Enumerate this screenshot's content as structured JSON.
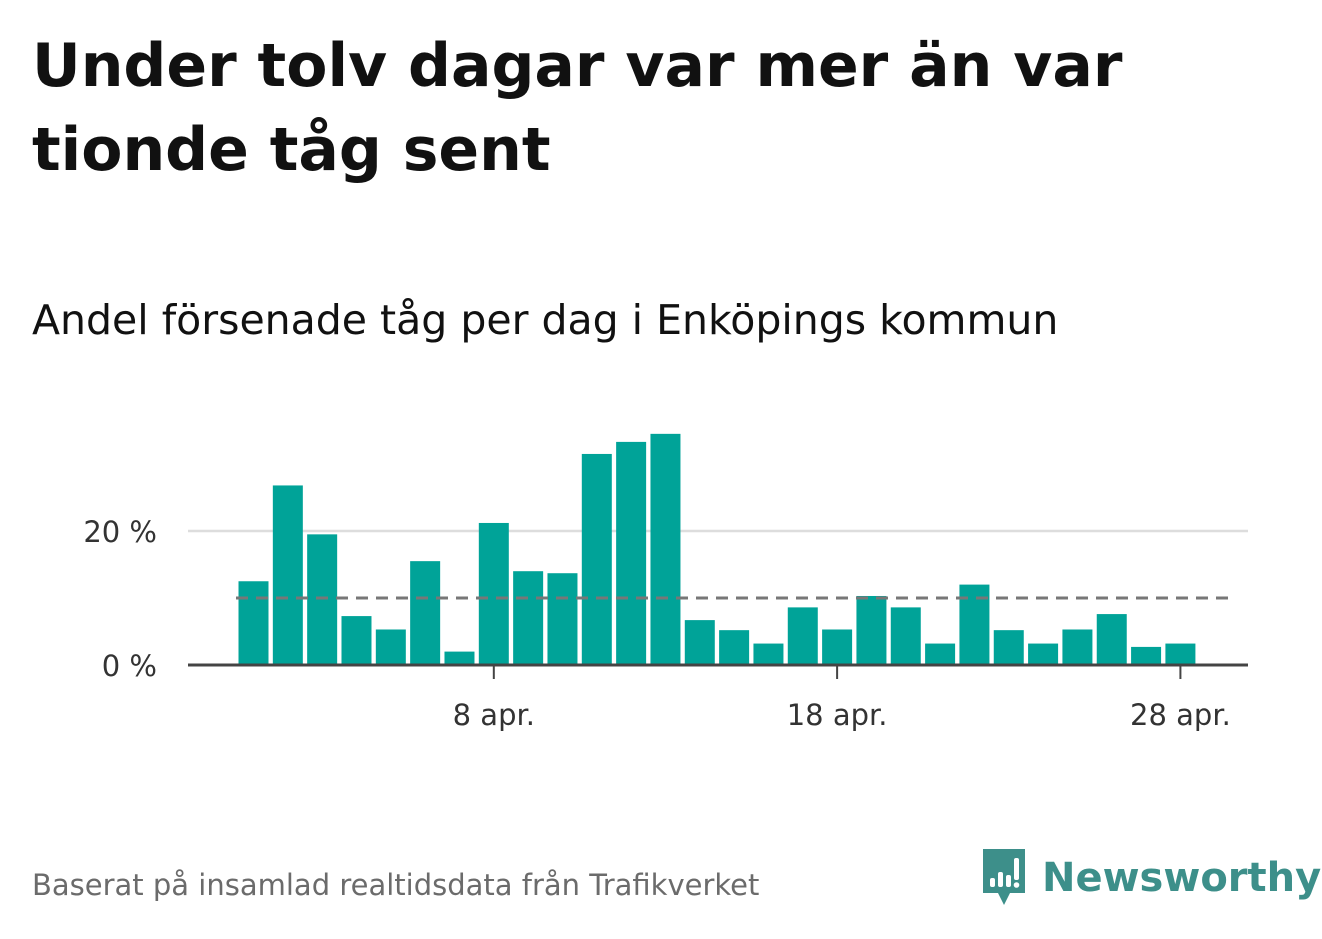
{
  "headline": "Under tolv dagar var mer än var tionde tåg sent",
  "subtitle": "Andel försenade tåg per dag i Enköpings kommun",
  "footer": "Baserat på insamlad realtidsdata från Trafikverket",
  "brand": "Newsworthy",
  "colors": {
    "bar": "#00a398",
    "grid": "#dddddd",
    "reference": "#777777",
    "axis": "#444444",
    "brand": "#3d8f8a"
  },
  "chart_data": {
    "type": "bar",
    "title": "Andel försenade tåg per dag i Enköpings kommun",
    "xlabel": "",
    "ylabel": "",
    "x_unit": "day of April",
    "x": [
      1,
      2,
      3,
      4,
      5,
      6,
      7,
      8,
      9,
      10,
      11,
      12,
      13,
      14,
      15,
      16,
      17,
      18,
      19,
      20,
      21,
      22,
      23,
      24,
      25,
      26,
      27,
      28,
      29
    ],
    "values": [
      12.5,
      26.8,
      19.5,
      7.3,
      5.3,
      15.5,
      2.0,
      21.2,
      14.0,
      13.7,
      31.5,
      33.3,
      34.5,
      6.7,
      5.2,
      3.2,
      8.6,
      5.3,
      10.3,
      8.6,
      3.2,
      12.0,
      5.2,
      3.2,
      5.3,
      7.6,
      2.7,
      3.2,
      null
    ],
    "reference_line": 10,
    "ylim": [
      0,
      35
    ],
    "yticks": [
      {
        "value": 0,
        "label": "0 %"
      },
      {
        "value": 20,
        "label": "20 %"
      }
    ],
    "xticks": [
      {
        "value": 8,
        "label": "8 apr."
      },
      {
        "value": 18,
        "label": "18 apr."
      },
      {
        "value": 28,
        "label": "28 apr."
      }
    ],
    "grid": true,
    "legend": "none"
  }
}
